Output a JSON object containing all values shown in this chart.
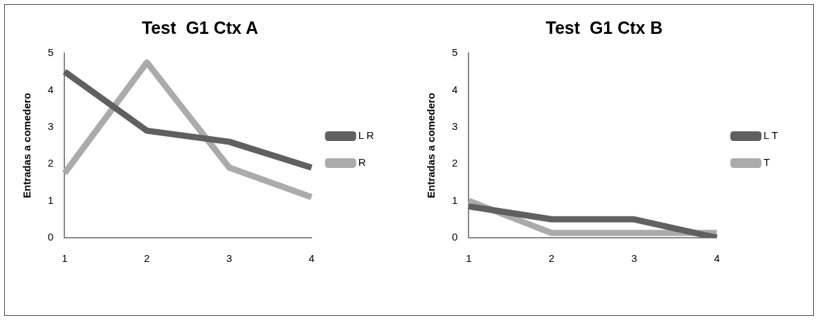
{
  "chart_data": [
    {
      "type": "line",
      "title": "Test  G1 Ctx A",
      "ylabel": "Entradas a comedero",
      "categories": [
        "1",
        "2",
        "3",
        "4"
      ],
      "series": [
        {
          "name": "L R",
          "color": "#606060",
          "values": [
            4.5,
            2.9,
            2.6,
            1.9
          ]
        },
        {
          "name": "R",
          "color": "#ababab",
          "values": [
            1.75,
            4.75,
            1.9,
            1.1
          ]
        }
      ],
      "ylim": [
        0,
        5
      ],
      "yticks": [
        0,
        1,
        2,
        3,
        4,
        5
      ],
      "grid": false,
      "legend": "right",
      "marker": "none",
      "line_style": "solid"
    },
    {
      "type": "line",
      "title": "Test  G1 Ctx B",
      "ylabel": "Entradas a comedero",
      "categories": [
        "1",
        "2",
        "3",
        "4"
      ],
      "series": [
        {
          "name": "L T",
          "color": "#606060",
          "values": [
            0.85,
            0.5,
            0.5,
            0
          ]
        },
        {
          "name": "T",
          "color": "#ababab",
          "values": [
            1.0,
            0.13,
            0.13,
            0.13
          ]
        }
      ],
      "ylim": [
        0,
        5
      ],
      "yticks": [
        0,
        1,
        2,
        3,
        4,
        5
      ],
      "grid": false,
      "legend": "right",
      "marker": "none",
      "line_style": "solid"
    }
  ]
}
